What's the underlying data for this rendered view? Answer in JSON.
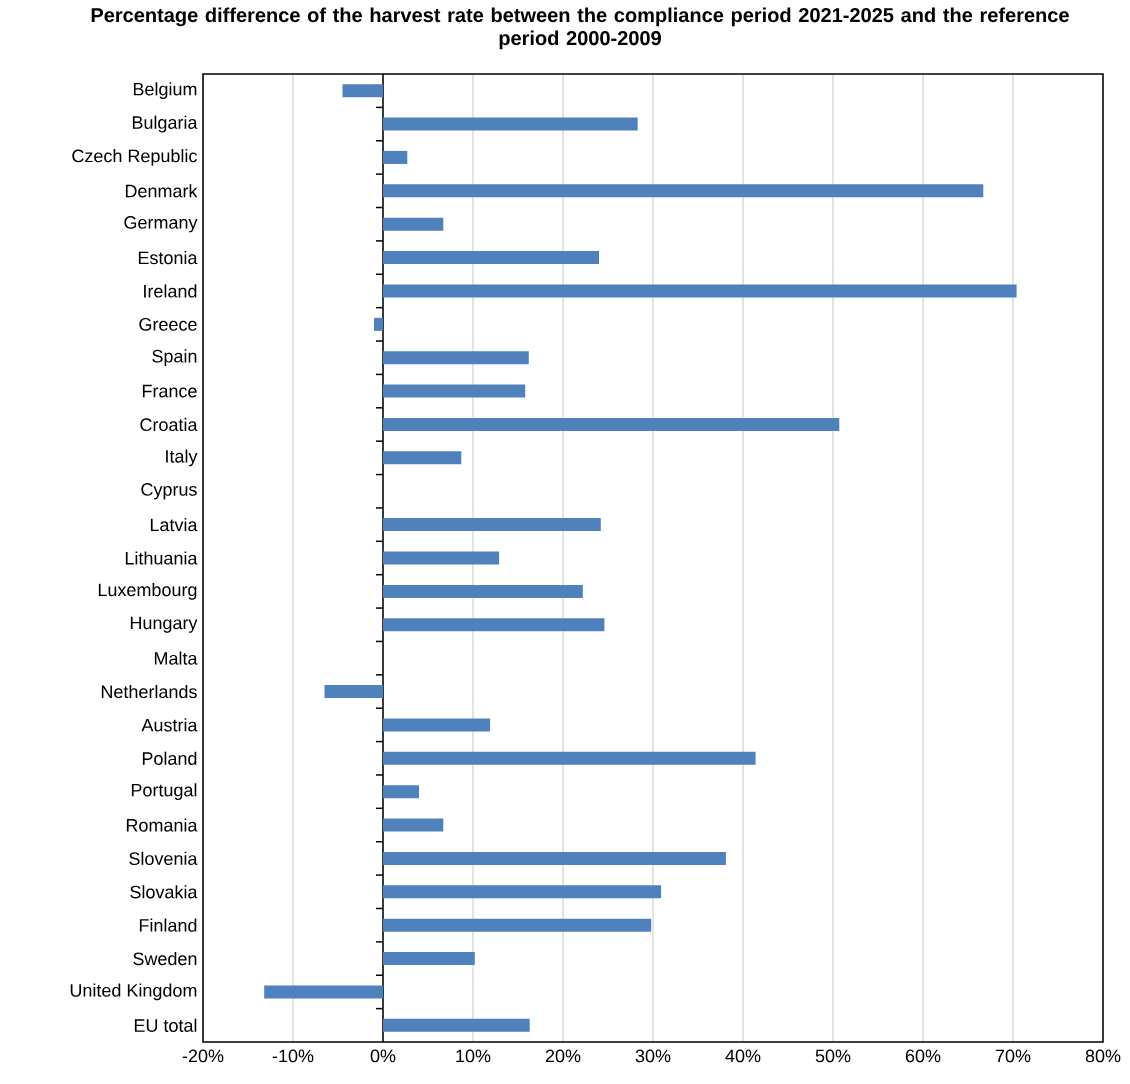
{
  "chart_data": {
    "type": "bar",
    "orientation": "horizontal",
    "title": "Percentage difference of the harvest rate between the compliance period 2021-2025 and the reference period 2000-2009",
    "categories": [
      "Belgium",
      "Bulgaria",
      "Czech Republic",
      "Denmark",
      "Germany",
      "Estonia",
      "Ireland",
      "Greece",
      "Spain",
      "France",
      "Croatia",
      "Italy",
      "Cyprus",
      "Latvia",
      "Lithuania",
      "Luxembourg",
      "Hungary",
      "Malta",
      "Netherlands",
      "Austria",
      "Poland",
      "Portugal",
      "Romania",
      "Slovenia",
      "Slovakia",
      "Finland",
      "Sweden",
      "United Kingdom",
      "EU total"
    ],
    "values": [
      -4.5,
      28.3,
      2.7,
      66.7,
      6.7,
      24.0,
      70.4,
      -1.0,
      16.2,
      15.8,
      50.7,
      8.7,
      0,
      24.2,
      12.9,
      22.2,
      24.6,
      0,
      -6.5,
      11.9,
      41.4,
      4.0,
      6.7,
      38.1,
      30.9,
      29.8,
      10.2,
      -13.2,
      16.3
    ],
    "color": "#4f81bd",
    "xlim": [
      -20,
      80
    ],
    "xticks": [
      {
        "value": -20,
        "label": "-20%"
      },
      {
        "value": -10,
        "label": "-10%"
      },
      {
        "value": 0,
        "label": "0%"
      },
      {
        "value": 10,
        "label": "10%"
      },
      {
        "value": 20,
        "label": "20%"
      },
      {
        "value": 30,
        "label": "30%"
      },
      {
        "value": 40,
        "label": "40%"
      },
      {
        "value": 50,
        "label": "50%"
      },
      {
        "value": 60,
        "label": "60%"
      },
      {
        "value": 70,
        "label": "70%"
      },
      {
        "value": 80,
        "label": "80%"
      }
    ],
    "grid": "x"
  }
}
